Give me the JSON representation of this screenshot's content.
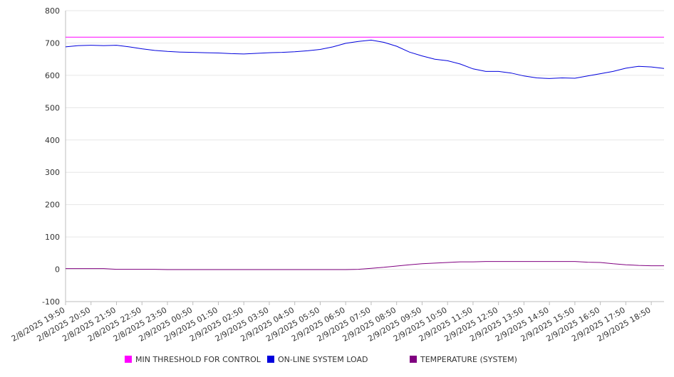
{
  "chart_data": {
    "type": "line",
    "title": "",
    "xlabel": "",
    "ylabel": "",
    "ylim": [
      -100,
      800
    ],
    "yticks": [
      -100,
      0,
      100,
      200,
      300,
      400,
      500,
      600,
      700,
      800
    ],
    "grid": true,
    "legend_position": "bottom",
    "x_tick_labels": [
      "2/8/2025 19:50",
      "2/8/2025 20:50",
      "2/8/2025 21:50",
      "2/8/2025 22:50",
      "2/8/2025 23:50",
      "2/9/2025 00:50",
      "2/9/2025 01:50",
      "2/9/2025 02:50",
      "2/9/2025 03:50",
      "2/9/2025 04:50",
      "2/9/2025 05:50",
      "2/9/2025 06:50",
      "2/9/2025 07:50",
      "2/9/2025 08:50",
      "2/9/2025 09:50",
      "2/9/2025 10:50",
      "2/9/2025 11:50",
      "2/9/2025 12:50",
      "2/9/2025 13:50",
      "2/9/2025 14:50",
      "2/9/2025 15:50",
      "2/9/2025 16:50",
      "2/9/2025 17:50",
      "2/9/2025 18:50"
    ],
    "x": [
      "2/8/2025 19:50",
      "2/8/2025 20:20",
      "2/8/2025 20:50",
      "2/8/2025 21:20",
      "2/8/2025 21:50",
      "2/8/2025 22:20",
      "2/8/2025 22:50",
      "2/8/2025 23:20",
      "2/8/2025 23:50",
      "2/9/2025 00:20",
      "2/9/2025 00:50",
      "2/9/2025 01:20",
      "2/9/2025 01:50",
      "2/9/2025 02:20",
      "2/9/2025 02:50",
      "2/9/2025 03:20",
      "2/9/2025 03:50",
      "2/9/2025 04:20",
      "2/9/2025 04:50",
      "2/9/2025 05:20",
      "2/9/2025 05:50",
      "2/9/2025 06:20",
      "2/9/2025 06:50",
      "2/9/2025 07:20",
      "2/9/2025 07:50",
      "2/9/2025 08:20",
      "2/9/2025 08:50",
      "2/9/2025 09:20",
      "2/9/2025 09:50",
      "2/9/2025 10:20",
      "2/9/2025 10:50",
      "2/9/2025 11:20",
      "2/9/2025 11:50",
      "2/9/2025 12:20",
      "2/9/2025 12:50",
      "2/9/2025 13:20",
      "2/9/2025 13:50",
      "2/9/2025 14:20",
      "2/9/2025 14:50",
      "2/9/2025 15:20",
      "2/9/2025 15:50",
      "2/9/2025 16:20",
      "2/9/2025 16:50",
      "2/9/2025 17:20",
      "2/9/2025 17:50",
      "2/9/2025 18:20",
      "2/9/2025 18:50",
      "2/9/2025 19:20"
    ],
    "series": [
      {
        "name": "MIN THRESHOLD FOR CONTROL",
        "color": "#ff00ff",
        "values": [
          718,
          718,
          718,
          718,
          718,
          718,
          718,
          718,
          718,
          718,
          718,
          718,
          718,
          718,
          718,
          718,
          718,
          718,
          718,
          718,
          718,
          718,
          718,
          718,
          718,
          718,
          718,
          718,
          718,
          718,
          718,
          718,
          718,
          718,
          718,
          718,
          718,
          718,
          718,
          718,
          718,
          718,
          718,
          718,
          718,
          718,
          718,
          718
        ]
      },
      {
        "name": "ON-LINE SYSTEM LOAD",
        "color": "#0000dd",
        "values": [
          688,
          692,
          693,
          692,
          693,
          688,
          682,
          677,
          674,
          672,
          671,
          670,
          669,
          667,
          666,
          668,
          670,
          671,
          673,
          676,
          680,
          688,
          699,
          705,
          709,
          702,
          690,
          672,
          660,
          650,
          645,
          635,
          620,
          612,
          612,
          607,
          598,
          592,
          590,
          592,
          591,
          598,
          605,
          612,
          622,
          628,
          626,
          621
        ]
      },
      {
        "name": "TEMPERATURE (SYSTEM)",
        "color": "#800080",
        "values": [
          2,
          2,
          2,
          2,
          0,
          0,
          0,
          0,
          -1,
          -1,
          -1,
          -1,
          -1,
          -1,
          -1,
          -1,
          -1,
          -1,
          -1,
          -1,
          -1,
          -1,
          -1,
          0,
          3,
          6,
          10,
          14,
          17,
          19,
          21,
          23,
          23,
          24,
          24,
          24,
          24,
          24,
          24,
          24,
          24,
          22,
          21,
          17,
          14,
          12,
          11,
          11
        ]
      }
    ]
  }
}
